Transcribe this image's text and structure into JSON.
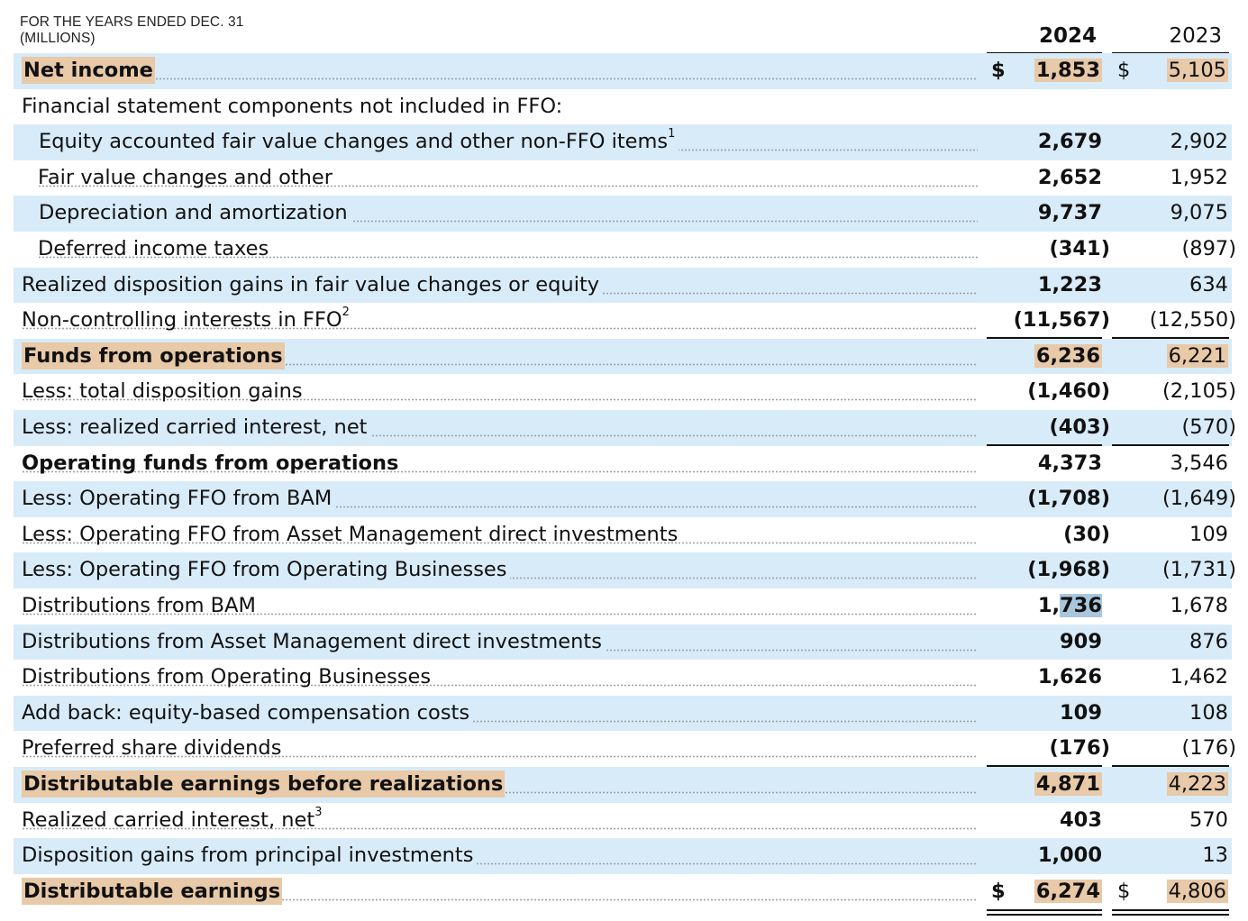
{
  "header": {
    "line1": "FOR THE YEARS ENDED DEC. 31",
    "line2": "(MILLIONS)",
    "year_current": "2024",
    "year_prior": "2023"
  },
  "currency_symbol": "$",
  "rows": [
    {
      "label": "Net income",
      "sup": "",
      "v2024": "1,853",
      "v2023": "5,105"
    },
    {
      "label": "Financial statement components not included in FFO:",
      "sup": "",
      "v2024": "",
      "v2023": ""
    },
    {
      "label": "Equity accounted fair value changes and other non-FFO items",
      "sup": "1",
      "v2024": "2,679",
      "v2023": "2,902"
    },
    {
      "label": "Fair value changes and other",
      "sup": "",
      "v2024": "2,652",
      "v2023": "1,952"
    },
    {
      "label": "Depreciation and amortization",
      "sup": "",
      "v2024": "9,737",
      "v2023": "9,075"
    },
    {
      "label": "Deferred income taxes",
      "sup": "",
      "v2024": "(341)",
      "v2023": "(897)"
    },
    {
      "label": "Realized disposition gains in fair value changes or equity",
      "sup": "",
      "v2024": "1,223",
      "v2023": "634"
    },
    {
      "label": "Non-controlling interests in FFO",
      "sup": "2",
      "v2024": "(11,567)",
      "v2023": "(12,550)"
    },
    {
      "label": "Funds from operations",
      "sup": "",
      "v2024": "6,236",
      "v2023": "6,221"
    },
    {
      "label": "Less: total disposition gains",
      "sup": "",
      "v2024": "(1,460)",
      "v2023": "(2,105)"
    },
    {
      "label": "Less: realized carried interest, net",
      "sup": "",
      "v2024": "(403)",
      "v2023": "(570)"
    },
    {
      "label": "Operating funds from operations",
      "sup": "",
      "v2024": "4,373",
      "v2023": "3,546"
    },
    {
      "label": "Less: Operating FFO from BAM",
      "sup": "",
      "v2024": "(1,708)",
      "v2023": "(1,649)"
    },
    {
      "label": "Less: Operating FFO from Asset Management direct investments",
      "sup": "",
      "v2024": "(30)",
      "v2023": "109"
    },
    {
      "label": "Less: Operating FFO from Operating Businesses",
      "sup": "",
      "v2024": "(1,968)",
      "v2023": "(1,731)"
    },
    {
      "label": "Distributions from BAM",
      "sup": "",
      "v2024": "1,736",
      "v2023": "1,678"
    },
    {
      "label": "Distributions from Asset Management direct investments",
      "sup": "",
      "v2024": "909",
      "v2023": "876"
    },
    {
      "label": "Distributions from Operating Businesses",
      "sup": "",
      "v2024": "1,626",
      "v2023": "1,462"
    },
    {
      "label": "Add back: equity-based compensation costs",
      "sup": "",
      "v2024": "109",
      "v2023": "108"
    },
    {
      "label": "Preferred share dividends",
      "sup": "",
      "v2024": "(176)",
      "v2023": "(176)"
    },
    {
      "label": "Distributable earnings before realizations",
      "sup": "",
      "v2024": "4,871",
      "v2023": "4,223"
    },
    {
      "label": "Realized carried interest, net",
      "sup": "3",
      "v2024": "403",
      "v2023": "570"
    },
    {
      "label": "Disposition gains from principal investments",
      "sup": "",
      "v2024": "1,000",
      "v2023": "13"
    },
    {
      "label": "Distributable earnings",
      "sup": "",
      "v2024": "6,274",
      "v2023": "4,806"
    }
  ],
  "colors": {
    "band": "#d8ebf8",
    "highlight": "#e8c9a8",
    "selection": "#a9c6dc"
  }
}
